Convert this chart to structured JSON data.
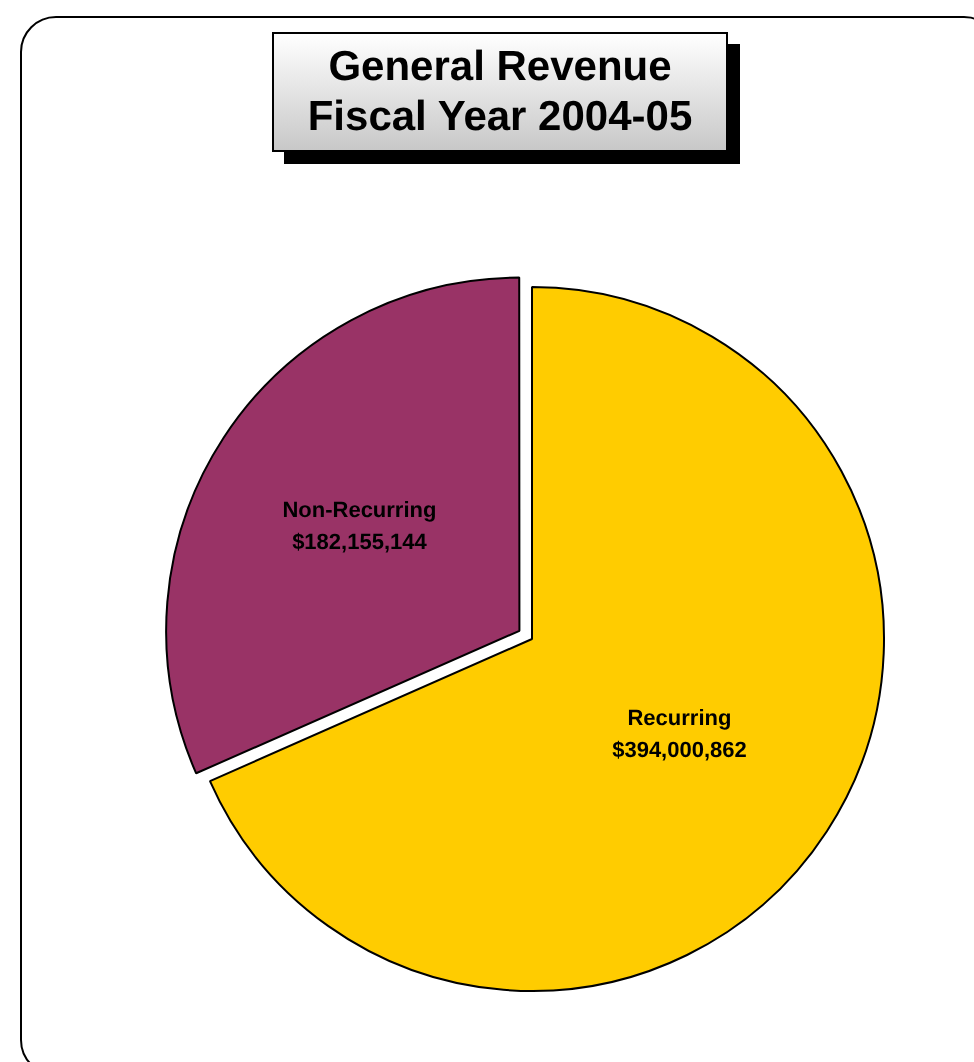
{
  "chart_data": {
    "type": "pie",
    "title": "General Revenue\nFiscal Year 2004-05",
    "categories": [
      "Recurring",
      "Non-Recurring"
    ],
    "values": [
      394000862,
      182155144
    ],
    "colors": [
      "#ffcc00",
      "#993366"
    ],
    "value_labels": [
      "$394,000,862",
      "$182,155,144"
    ],
    "legend": false
  }
}
